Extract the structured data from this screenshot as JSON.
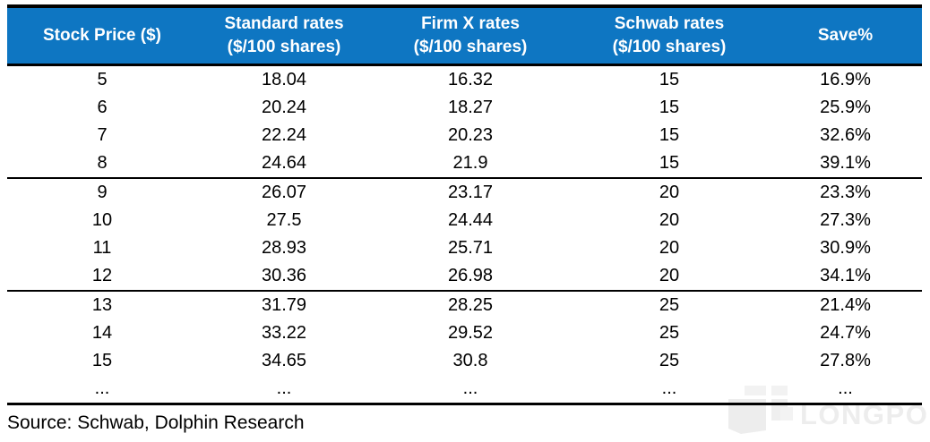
{
  "chart_data": {
    "type": "table",
    "columns": [
      {
        "label": "Stock Price ($)",
        "sub": ""
      },
      {
        "label": "Standard rates",
        "sub": "($/100 shares)"
      },
      {
        "label": "Firm X rates",
        "sub": "($/100 shares)"
      },
      {
        "label": "Schwab rates",
        "sub": "($/100 shares)"
      },
      {
        "label": "Save%",
        "sub": ""
      }
    ],
    "row_groups": [
      [
        [
          "5",
          "18.04",
          "16.32",
          "15",
          "16.9%"
        ],
        [
          "6",
          "20.24",
          "18.27",
          "15",
          "25.9%"
        ],
        [
          "7",
          "22.24",
          "20.23",
          "15",
          "32.6%"
        ],
        [
          "8",
          "24.64",
          "21.9",
          "15",
          "39.1%"
        ]
      ],
      [
        [
          "9",
          "26.07",
          "23.17",
          "20",
          "23.3%"
        ],
        [
          "10",
          "27.5",
          "24.44",
          "20",
          "27.3%"
        ],
        [
          "11",
          "28.93",
          "25.71",
          "20",
          "30.9%"
        ],
        [
          "12",
          "30.36",
          "26.98",
          "20",
          "34.1%"
        ]
      ],
      [
        [
          "13",
          "31.79",
          "28.25",
          "25",
          "21.4%"
        ],
        [
          "14",
          "33.22",
          "29.52",
          "25",
          "24.7%"
        ],
        [
          "15",
          "34.65",
          "30.8",
          "25",
          "27.8%"
        ],
        [
          "...",
          "...",
          "...",
          "...",
          "..."
        ]
      ]
    ]
  },
  "source": {
    "text": "Source: Schwab, Dolphin Research"
  },
  "watermark": {
    "text": "LONGPORT"
  },
  "colors": {
    "header_bg": "#0E76C2",
    "header_text": "#FFFFFF",
    "border": "#000000",
    "body_text": "#000000",
    "watermark": "#EDEDED"
  }
}
